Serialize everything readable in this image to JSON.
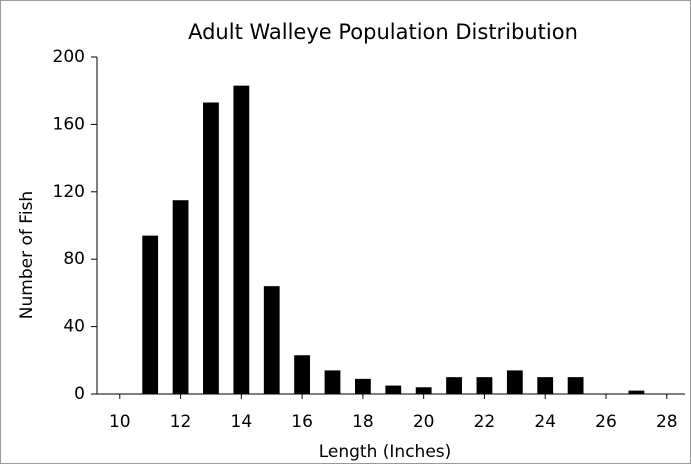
{
  "chart_data": {
    "type": "bar",
    "title": "Adult Walleye Population Distribution",
    "x_label": "Length (Inches)",
    "y_label": "Number of Fish",
    "x": [
      11,
      12,
      13,
      14,
      15,
      16,
      17,
      18,
      19,
      20,
      21,
      22,
      23,
      24,
      25,
      27
    ],
    "values": [
      94,
      115,
      173,
      183,
      64,
      23,
      14,
      9,
      5,
      4,
      10,
      10,
      14,
      10,
      10,
      2
    ],
    "color": "#000000",
    "xlim": [
      9.25,
      28.6
    ],
    "xticks": [
      10,
      12,
      14,
      16,
      18,
      20,
      22,
      24,
      26,
      28
    ],
    "ylim": [
      0,
      200
    ],
    "yticks": [
      0,
      40,
      80,
      120,
      160,
      200
    ],
    "grid": false
  }
}
